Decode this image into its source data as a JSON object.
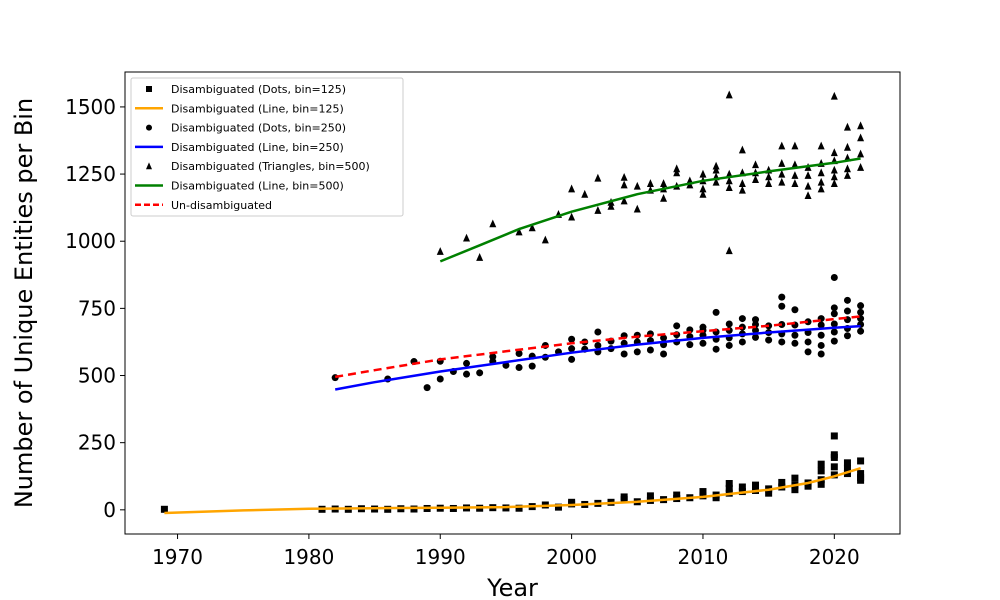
{
  "chart_data": {
    "type": "scatter",
    "xlabel": "Year",
    "ylabel": "Number of Unique Entities per Bin",
    "xlim": [
      1966,
      2025
    ],
    "ylim": [
      -90,
      1630
    ],
    "x_ticks": [
      1970,
      1980,
      1990,
      2000,
      2010,
      2020
    ],
    "y_ticks": [
      0,
      250,
      500,
      750,
      1000,
      1250,
      1500
    ],
    "grid": false,
    "legend_position": "top-left",
    "series": [
      {
        "name": "Disambiguated (Dots, bin=125)",
        "kind": "points",
        "marker": "square",
        "color": "#000000",
        "points": [
          [
            1969,
            2
          ],
          [
            1981,
            2
          ],
          [
            1982,
            3
          ],
          [
            1983,
            2
          ],
          [
            1984,
            4
          ],
          [
            1985,
            3
          ],
          [
            1986,
            2
          ],
          [
            1987,
            4
          ],
          [
            1988,
            3
          ],
          [
            1989,
            5
          ],
          [
            1990,
            6
          ],
          [
            1991,
            5
          ],
          [
            1992,
            7
          ],
          [
            1993,
            6
          ],
          [
            1994,
            8
          ],
          [
            1995,
            7
          ],
          [
            1996,
            6
          ],
          [
            1997,
            12
          ],
          [
            1998,
            18
          ],
          [
            1999,
            10
          ],
          [
            2000,
            28
          ],
          [
            2000,
            22
          ],
          [
            2001,
            20
          ],
          [
            2002,
            24
          ],
          [
            2003,
            28
          ],
          [
            2004,
            38
          ],
          [
            2004,
            48
          ],
          [
            2005,
            30
          ],
          [
            2006,
            35
          ],
          [
            2006,
            52
          ],
          [
            2007,
            38
          ],
          [
            2008,
            42
          ],
          [
            2008,
            55
          ],
          [
            2009,
            45
          ],
          [
            2010,
            52
          ],
          [
            2010,
            68
          ],
          [
            2011,
            55
          ],
          [
            2011,
            45
          ],
          [
            2012,
            62
          ],
          [
            2012,
            80
          ],
          [
            2012,
            98
          ],
          [
            2013,
            68
          ],
          [
            2013,
            85
          ],
          [
            2014,
            72
          ],
          [
            2014,
            92
          ],
          [
            2015,
            78
          ],
          [
            2015,
            62
          ],
          [
            2016,
            85
          ],
          [
            2016,
            102
          ],
          [
            2017,
            92
          ],
          [
            2017,
            118
          ],
          [
            2017,
            75
          ],
          [
            2018,
            100
          ],
          [
            2018,
            88
          ],
          [
            2019,
            112
          ],
          [
            2019,
            145
          ],
          [
            2019,
            170
          ],
          [
            2019,
            95
          ],
          [
            2020,
            130
          ],
          [
            2020,
            160
          ],
          [
            2020,
            195
          ],
          [
            2020,
            205
          ],
          [
            2020,
            275
          ],
          [
            2021,
            135
          ],
          [
            2021,
            155
          ],
          [
            2021,
            175
          ],
          [
            2022,
            120
          ],
          [
            2022,
            135
          ],
          [
            2022,
            110
          ],
          [
            2022,
            182
          ]
        ]
      },
      {
        "name": "Disambiguated (Line, bin=125)",
        "kind": "line",
        "color": "#ffa500",
        "dash": false,
        "points": [
          [
            1969,
            -12
          ],
          [
            1975,
            -2
          ],
          [
            1980,
            4
          ],
          [
            1985,
            6
          ],
          [
            1990,
            8
          ],
          [
            1995,
            10
          ],
          [
            2000,
            18
          ],
          [
            2005,
            30
          ],
          [
            2010,
            48
          ],
          [
            2015,
            75
          ],
          [
            2018,
            100
          ],
          [
            2020,
            125
          ],
          [
            2022,
            155
          ]
        ]
      },
      {
        "name": "Disambiguated (Dots, bin=250)",
        "kind": "points",
        "marker": "circle",
        "color": "#000000",
        "points": [
          [
            1982,
            492
          ],
          [
            1986,
            487
          ],
          [
            1988,
            552
          ],
          [
            1989,
            455
          ],
          [
            1990,
            487
          ],
          [
            1990,
            553
          ],
          [
            1991,
            515
          ],
          [
            1992,
            505
          ],
          [
            1992,
            545
          ],
          [
            1993,
            510
          ],
          [
            1994,
            552
          ],
          [
            1994,
            570
          ],
          [
            1995,
            538
          ],
          [
            1996,
            530
          ],
          [
            1996,
            582
          ],
          [
            1997,
            535
          ],
          [
            1997,
            572
          ],
          [
            1998,
            568
          ],
          [
            1998,
            612
          ],
          [
            1999,
            588
          ],
          [
            2000,
            560
          ],
          [
            2000,
            600
          ],
          [
            2000,
            635
          ],
          [
            2001,
            598
          ],
          [
            2001,
            625
          ],
          [
            2002,
            588
          ],
          [
            2002,
            612
          ],
          [
            2002,
            662
          ],
          [
            2003,
            600
          ],
          [
            2003,
            628
          ],
          [
            2004,
            580
          ],
          [
            2004,
            620
          ],
          [
            2004,
            648
          ],
          [
            2005,
            588
          ],
          [
            2005,
            625
          ],
          [
            2005,
            650
          ],
          [
            2006,
            595
          ],
          [
            2006,
            630
          ],
          [
            2006,
            655
          ],
          [
            2007,
            580
          ],
          [
            2007,
            615
          ],
          [
            2007,
            640
          ],
          [
            2008,
            625
          ],
          [
            2008,
            652
          ],
          [
            2008,
            685
          ],
          [
            2009,
            615
          ],
          [
            2009,
            645
          ],
          [
            2009,
            670
          ],
          [
            2010,
            620
          ],
          [
            2010,
            650
          ],
          [
            2010,
            668
          ],
          [
            2010,
            680
          ],
          [
            2011,
            598
          ],
          [
            2011,
            635
          ],
          [
            2011,
            662
          ],
          [
            2011,
            735
          ],
          [
            2012,
            612
          ],
          [
            2012,
            640
          ],
          [
            2012,
            668
          ],
          [
            2012,
            692
          ],
          [
            2013,
            625
          ],
          [
            2013,
            655
          ],
          [
            2013,
            680
          ],
          [
            2013,
            712
          ],
          [
            2014,
            642
          ],
          [
            2014,
            668
          ],
          [
            2014,
            690
          ],
          [
            2014,
            708
          ],
          [
            2015,
            632
          ],
          [
            2015,
            660
          ],
          [
            2015,
            685
          ],
          [
            2016,
            625
          ],
          [
            2016,
            655
          ],
          [
            2016,
            690
          ],
          [
            2016,
            758
          ],
          [
            2016,
            792
          ],
          [
            2017,
            620
          ],
          [
            2017,
            650
          ],
          [
            2017,
            688
          ],
          [
            2017,
            745
          ],
          [
            2018,
            588
          ],
          [
            2018,
            625
          ],
          [
            2018,
            660
          ],
          [
            2018,
            700
          ],
          [
            2019,
            580
          ],
          [
            2019,
            612
          ],
          [
            2019,
            650
          ],
          [
            2019,
            688
          ],
          [
            2019,
            712
          ],
          [
            2020,
            628
          ],
          [
            2020,
            662
          ],
          [
            2020,
            692
          ],
          [
            2020,
            730
          ],
          [
            2020,
            752
          ],
          [
            2020,
            865
          ],
          [
            2021,
            648
          ],
          [
            2021,
            675
          ],
          [
            2021,
            708
          ],
          [
            2021,
            740
          ],
          [
            2021,
            780
          ],
          [
            2022,
            665
          ],
          [
            2022,
            690
          ],
          [
            2022,
            712
          ],
          [
            2022,
            735
          ],
          [
            2022,
            760
          ]
        ]
      },
      {
        "name": "Disambiguated (Line, bin=250)",
        "kind": "line",
        "color": "#0000ff",
        "dash": false,
        "points": [
          [
            1982,
            448
          ],
          [
            1985,
            475
          ],
          [
            1990,
            515
          ],
          [
            1995,
            550
          ],
          [
            2000,
            585
          ],
          [
            2005,
            615
          ],
          [
            2010,
            640
          ],
          [
            2015,
            660
          ],
          [
            2020,
            678
          ],
          [
            2022,
            684
          ]
        ]
      },
      {
        "name": "Disambiguated (Triangles, bin=500)",
        "kind": "points",
        "marker": "triangle",
        "color": "#000000",
        "points": [
          [
            1990,
            962
          ],
          [
            1992,
            1012
          ],
          [
            1993,
            940
          ],
          [
            1994,
            1065
          ],
          [
            1996,
            1035
          ],
          [
            1997,
            1050
          ],
          [
            1998,
            1005
          ],
          [
            1999,
            1100
          ],
          [
            2000,
            1090
          ],
          [
            2000,
            1195
          ],
          [
            2001,
            1175
          ],
          [
            2002,
            1115
          ],
          [
            2002,
            1235
          ],
          [
            2003,
            1130
          ],
          [
            2003,
            1145
          ],
          [
            2004,
            1150
          ],
          [
            2004,
            1210
          ],
          [
            2004,
            1238
          ],
          [
            2005,
            1120
          ],
          [
            2005,
            1205
          ],
          [
            2006,
            1190
          ],
          [
            2006,
            1215
          ],
          [
            2007,
            1160
          ],
          [
            2007,
            1195
          ],
          [
            2007,
            1215
          ],
          [
            2008,
            1205
          ],
          [
            2008,
            1255
          ],
          [
            2008,
            1270
          ],
          [
            2009,
            1210
          ],
          [
            2009,
            1225
          ],
          [
            2010,
            1175
          ],
          [
            2010,
            1195
          ],
          [
            2010,
            1225
          ],
          [
            2010,
            1250
          ],
          [
            2011,
            1220
          ],
          [
            2011,
            1240
          ],
          [
            2011,
            1265
          ],
          [
            2011,
            1280
          ],
          [
            2012,
            965
          ],
          [
            2012,
            1200
          ],
          [
            2012,
            1225
          ],
          [
            2012,
            1250
          ],
          [
            2012,
            1545
          ],
          [
            2013,
            1190
          ],
          [
            2013,
            1215
          ],
          [
            2013,
            1255
          ],
          [
            2013,
            1340
          ],
          [
            2014,
            1230
          ],
          [
            2014,
            1255
          ],
          [
            2014,
            1285
          ],
          [
            2015,
            1215
          ],
          [
            2015,
            1240
          ],
          [
            2015,
            1265
          ],
          [
            2016,
            1220
          ],
          [
            2016,
            1250
          ],
          [
            2016,
            1290
          ],
          [
            2016,
            1355
          ],
          [
            2017,
            1215
          ],
          [
            2017,
            1245
          ],
          [
            2017,
            1285
          ],
          [
            2017,
            1355
          ],
          [
            2018,
            1170
          ],
          [
            2018,
            1205
          ],
          [
            2018,
            1245
          ],
          [
            2018,
            1275
          ],
          [
            2019,
            1195
          ],
          [
            2019,
            1220
          ],
          [
            2019,
            1255
          ],
          [
            2019,
            1290
          ],
          [
            2019,
            1355
          ],
          [
            2020,
            1215
          ],
          [
            2020,
            1240
          ],
          [
            2020,
            1265
          ],
          [
            2020,
            1300
          ],
          [
            2020,
            1330
          ],
          [
            2020,
            1540
          ],
          [
            2021,
            1245
          ],
          [
            2021,
            1270
          ],
          [
            2021,
            1310
          ],
          [
            2021,
            1350
          ],
          [
            2021,
            1425
          ],
          [
            2022,
            1275
          ],
          [
            2022,
            1325
          ],
          [
            2022,
            1385
          ],
          [
            2022,
            1430
          ]
        ]
      },
      {
        "name": "Disambiguated (Line, bin=500)",
        "kind": "line",
        "color": "#008000",
        "dash": false,
        "points": [
          [
            1990,
            925
          ],
          [
            1993,
            985
          ],
          [
            1996,
            1045
          ],
          [
            2000,
            1110
          ],
          [
            2005,
            1175
          ],
          [
            2010,
            1225
          ],
          [
            2015,
            1260
          ],
          [
            2020,
            1292
          ],
          [
            2022,
            1308
          ]
        ]
      },
      {
        "name": "Un-disambiguated",
        "kind": "line",
        "color": "#ff0000",
        "dash": true,
        "points": [
          [
            1982,
            495
          ],
          [
            1985,
            520
          ],
          [
            1990,
            560
          ],
          [
            1995,
            590
          ],
          [
            2000,
            620
          ],
          [
            2005,
            645
          ],
          [
            2010,
            665
          ],
          [
            2015,
            685
          ],
          [
            2020,
            710
          ],
          [
            2022,
            720
          ]
        ]
      }
    ]
  }
}
